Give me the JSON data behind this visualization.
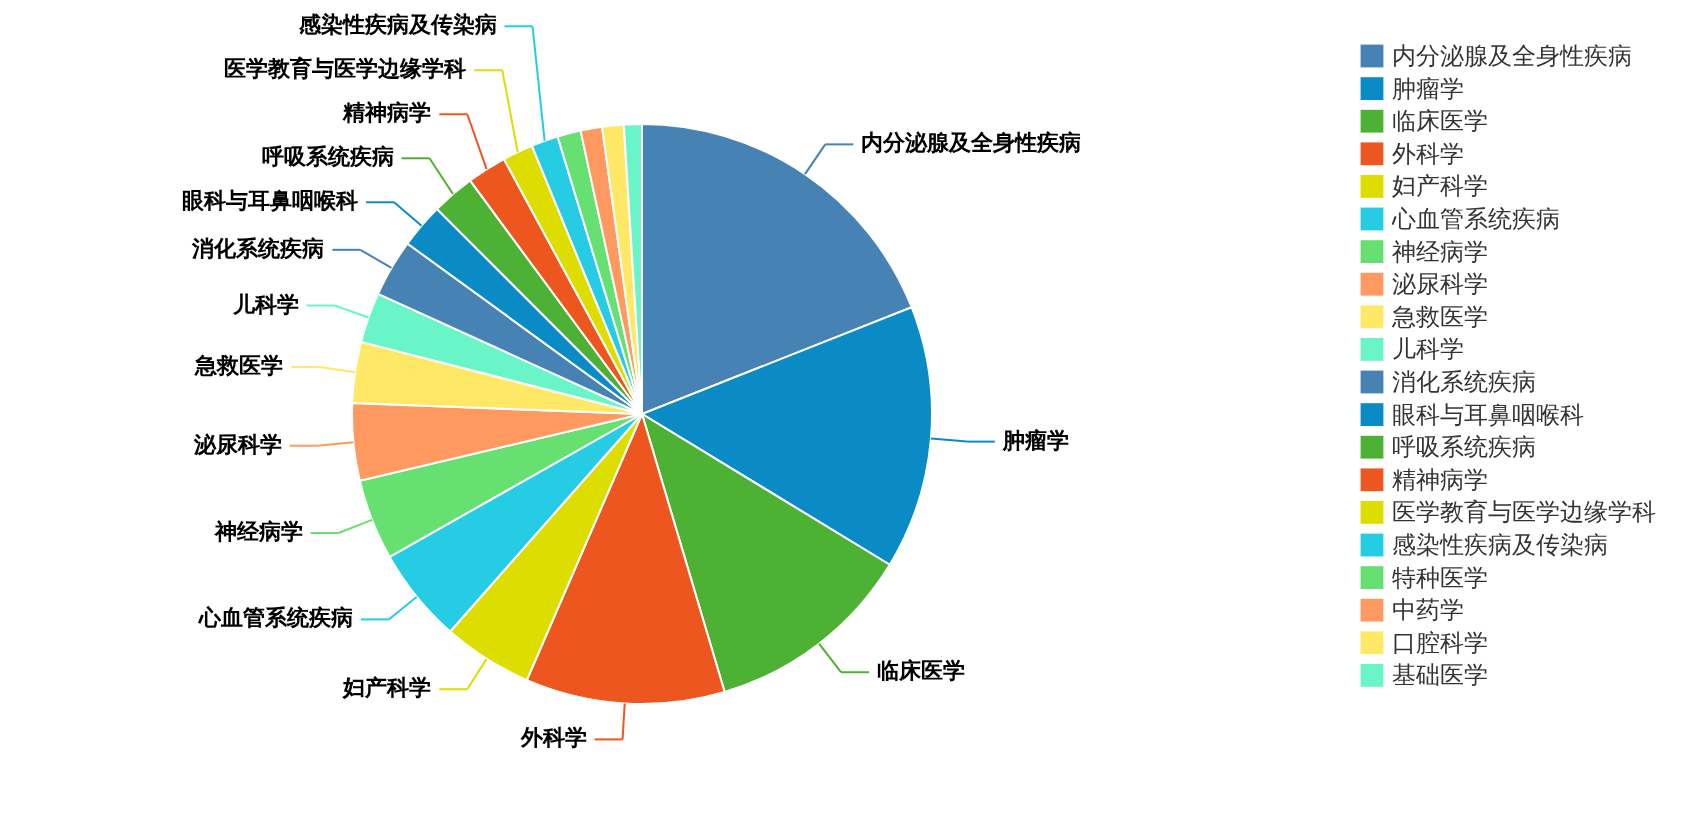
{
  "chart_data": {
    "type": "pie",
    "categories": [
      "内分泌腺及全身性疾病",
      "肿瘤学",
      "临床医学",
      "外科学",
      "妇产科学",
      "心血管系统疾病",
      "神经病学",
      "泌尿科学",
      "急救医学",
      "儿科学",
      "消化系统疾病",
      "眼科与耳鼻咽喉科",
      "呼吸系统疾病",
      "精神病学",
      "医学教育与医学边缘学科",
      "感染性疾病及传染病",
      "特种医学",
      "中药学",
      "口腔科学",
      "基础医学"
    ],
    "values": [
      19,
      14.7,
      11.7,
      11.1,
      5,
      5.3,
      4.5,
      4.3,
      3.4,
      2.8,
      3.2,
      2.5,
      2.4,
      2.2,
      1.7,
      1.5,
      1.3,
      1.2,
      1.2,
      1.0
    ],
    "colors": [
      "#4682b4",
      "#0b8bc6",
      "#4db133",
      "#ee561f",
      "#dddd00",
      "#26cce4",
      "#66e070",
      "#ff9960",
      "#ffe866",
      "#6af5c8",
      "#4682b4",
      "#0b8bc6",
      "#4db133",
      "#ee561f",
      "#dddd00",
      "#26cce4",
      "#66e070",
      "#ff9960",
      "#ffe866",
      "#6af5c8"
    ],
    "legend": "right"
  }
}
